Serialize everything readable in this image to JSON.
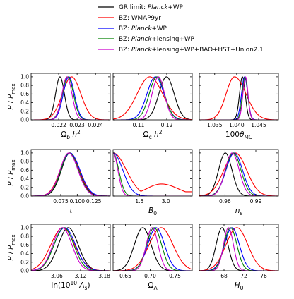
{
  "legend": [
    {
      "pre": "GR limit: ",
      "em": "Planck",
      "post": "+WP",
      "color": "#000000"
    },
    {
      "pre": "BZ: WMAP9yr",
      "em": "",
      "post": "",
      "color": "#ff0000"
    },
    {
      "pre": "BZ: ",
      "em": "Planck",
      "post": "+WP",
      "color": "#0000ff"
    },
    {
      "pre": "BZ: ",
      "em": "Planck",
      "post": "+lensing+WP",
      "color": "#008000"
    },
    {
      "pre": "BZ: ",
      "em": "Planck",
      "post": "+lensing+WP+BAO+HST+Union2.1",
      "color": "#cc00cc"
    }
  ],
  "ylabel": {
    "main": "P",
    "sep": " / ",
    "sub_main": "P",
    "sub": "max"
  },
  "chart_data": [
    {
      "type": "line",
      "xlabel": "Ω_b h^2",
      "xlim": [
        0.0205,
        0.0248
      ],
      "ylim": [
        0,
        1.08
      ],
      "xticks": [
        0.022,
        0.023,
        0.024
      ],
      "xtick_labels": [
        "0.022",
        "0.023",
        "0.024"
      ],
      "yticks": [
        0,
        0.2,
        0.4,
        0.6,
        0.8,
        1.0
      ],
      "ytick_labels": [
        "0.0",
        "0.2",
        "0.4",
        "0.6",
        "0.8",
        "1.0"
      ],
      "series": [
        {
          "color": "#000000",
          "peaks": [
            [
              0.02207,
              0.00024,
              0.00024
            ]
          ]
        },
        {
          "color": "#ff0000",
          "peaks": [
            [
              0.0227,
              0.0005,
              0.0005
            ]
          ]
        },
        {
          "color": "#0000ff",
          "peaks": [
            [
              0.02255,
              0.0003,
              0.0003
            ]
          ]
        },
        {
          "color": "#008000",
          "peaks": [
            [
              0.0225,
              0.0003,
              0.0003
            ]
          ]
        },
        {
          "color": "#cc00cc",
          "peaks": [
            [
              0.02245,
              0.00027,
              0.00027
            ]
          ]
        }
      ]
    },
    {
      "type": "line",
      "xlabel": "Ω_c h^2",
      "xlim": [
        0.101,
        0.129
      ],
      "xticks": [
        0.11,
        0.12
      ],
      "xtick_labels": [
        "0.11",
        "0.12"
      ],
      "series": [
        {
          "color": "#000000",
          "peaks": [
            [
              0.1199,
              0.0027,
              0.0027
            ]
          ]
        },
        {
          "color": "#ff0000",
          "peaks": [
            [
              0.114,
              0.0045,
              0.0045
            ]
          ]
        },
        {
          "color": "#0000ff",
          "peaks": [
            [
              0.116,
              0.003,
              0.003
            ]
          ]
        },
        {
          "color": "#008000",
          "peaks": [
            [
              0.1165,
              0.0027,
              0.0027
            ]
          ]
        },
        {
          "color": "#cc00cc",
          "peaks": [
            [
              0.117,
              0.0022,
              0.0022
            ]
          ]
        }
      ]
    },
    {
      "type": "line",
      "xlabel": "100θ_MC",
      "xlim": [
        1.0315,
        1.0495
      ],
      "xticks": [
        1.035,
        1.04,
        1.045
      ],
      "xtick_labels": [
        "1.035",
        "1.040",
        "1.045"
      ],
      "series": [
        {
          "color": "#000000",
          "peaks": [
            [
              1.0413,
              0.00065,
              0.00065
            ]
          ]
        },
        {
          "color": "#ff0000",
          "peaks": [
            [
              1.0395,
              0.0019,
              0.0026
            ]
          ]
        },
        {
          "color": "#0000ff",
          "peaks": [
            [
              1.0418,
              0.0007,
              0.0007
            ]
          ]
        },
        {
          "color": "#008000",
          "peaks": [
            [
              1.0419,
              0.00062,
              0.00062
            ]
          ]
        },
        {
          "color": "#cc00cc",
          "peaks": [
            [
              1.042,
              0.00058,
              0.00058
            ]
          ]
        }
      ]
    },
    {
      "type": "line",
      "xlabel": "τ",
      "xlim": [
        0.03,
        0.15
      ],
      "xticks": [
        0.075,
        0.1,
        0.125
      ],
      "xtick_labels": [
        "0.075",
        "0.100",
        "0.125"
      ],
      "series": [
        {
          "color": "#000000",
          "peaks": [
            [
              0.089,
              0.013,
              0.014
            ]
          ]
        },
        {
          "color": "#ff0000",
          "peaks": [
            [
              0.088,
              0.014,
              0.015
            ]
          ]
        },
        {
          "color": "#0000ff",
          "peaks": [
            [
              0.089,
              0.014,
              0.015
            ]
          ]
        },
        {
          "color": "#008000",
          "peaks": [
            [
              0.088,
              0.013,
              0.014
            ]
          ]
        },
        {
          "color": "#cc00cc",
          "peaks": [
            [
              0.087,
              0.013,
              0.014
            ]
          ]
        }
      ]
    },
    {
      "type": "line",
      "xlabel": "B_0",
      "xlim": [
        0.0,
        4.5
      ],
      "xticks": [
        1.5,
        3.0
      ],
      "xtick_labels": [
        "1.5",
        "3.0"
      ],
      "series": [
        {
          "color": "#ff0000",
          "floor": 0.1,
          "peaks": [
            [
              0.0,
              0.75,
              0.75
            ],
            [
              2.75,
              0.85,
              0.95,
              0.28
            ]
          ]
        },
        {
          "color": "#0000ff",
          "peaks": [
            [
              0.0,
              0.55,
              0.55
            ]
          ]
        },
        {
          "color": "#008000",
          "peaks": [
            [
              0.0,
              0.32,
              0.32
            ]
          ]
        },
        {
          "color": "#cc00cc",
          "peaks": [
            [
              0.0,
              0.27,
              0.27
            ]
          ]
        }
      ]
    },
    {
      "type": "line",
      "xlabel": "n_s",
      "xlim": [
        0.935,
        1.012
      ],
      "xticks": [
        0.96,
        0.99
      ],
      "xtick_labels": [
        "0.96",
        "0.99"
      ],
      "series": [
        {
          "color": "#000000",
          "peaks": [
            [
              0.9603,
              0.0065,
              0.0065
            ]
          ]
        },
        {
          "color": "#ff0000",
          "peaks": [
            [
              0.97,
              0.011,
              0.011
            ]
          ]
        },
        {
          "color": "#0000ff",
          "peaks": [
            [
              0.969,
              0.008,
              0.008
            ]
          ]
        },
        {
          "color": "#008000",
          "peaks": [
            [
              0.968,
              0.0075,
              0.0075
            ]
          ]
        },
        {
          "color": "#cc00cc",
          "peaks": [
            [
              0.967,
              0.0068,
              0.0068
            ]
          ]
        }
      ]
    },
    {
      "type": "line",
      "xlabel": "ln(10^10 A_s)",
      "xlim": [
        2.995,
        3.195
      ],
      "xticks": [
        3.06,
        3.12,
        3.18
      ],
      "xtick_labels": [
        "3.06",
        "3.12",
        "3.18"
      ],
      "series": [
        {
          "color": "#000000",
          "peaks": [
            [
              3.089,
              0.025,
              0.025
            ]
          ]
        },
        {
          "color": "#ff0000",
          "peaks": [
            [
              3.075,
              0.03,
              0.03
            ]
          ]
        },
        {
          "color": "#0000ff",
          "peaks": [
            [
              3.08,
              0.027,
              0.027
            ]
          ]
        },
        {
          "color": "#008000",
          "peaks": [
            [
              3.078,
              0.025,
              0.025
            ]
          ]
        },
        {
          "color": "#cc00cc",
          "peaks": [
            [
              3.074,
              0.024,
              0.024
            ]
          ]
        }
      ]
    },
    {
      "type": "line",
      "xlabel": "Ω_Λ",
      "xlim": [
        0.625,
        0.785
      ],
      "xticks": [
        0.65,
        0.7,
        0.75
      ],
      "xtick_labels": [
        "0.65",
        "0.70",
        "0.75"
      ],
      "series": [
        {
          "color": "#000000",
          "peaks": [
            [
              0.685,
              0.017,
              0.017
            ]
          ]
        },
        {
          "color": "#ff0000",
          "peaks": [
            [
              0.722,
              0.024,
              0.024
            ]
          ]
        },
        {
          "color": "#0000ff",
          "peaks": [
            [
              0.712,
              0.017,
              0.017
            ]
          ]
        },
        {
          "color": "#008000",
          "peaks": [
            [
              0.708,
              0.015,
              0.015
            ]
          ]
        },
        {
          "color": "#cc00cc",
          "peaks": [
            [
              0.704,
              0.012,
              0.012
            ]
          ]
        }
      ]
    },
    {
      "type": "line",
      "xlabel": "H_0",
      "xlim": [
        63,
        79
      ],
      "xticks": [
        68,
        72,
        76
      ],
      "xtick_labels": [
        "68",
        "72",
        "76"
      ],
      "series": [
        {
          "color": "#000000",
          "peaks": [
            [
              67.6,
              1.2,
              1.2
            ]
          ]
        },
        {
          "color": "#ff0000",
          "peaks": [
            [
              70.6,
              2.2,
              2.2
            ]
          ]
        },
        {
          "color": "#0000ff",
          "peaks": [
            [
              69.6,
              1.5,
              1.5
            ]
          ]
        },
        {
          "color": "#008000",
          "peaks": [
            [
              69.3,
              1.3,
              1.3
            ]
          ]
        },
        {
          "color": "#cc00cc",
          "peaks": [
            [
              68.9,
              1.0,
              1.0
            ]
          ]
        }
      ]
    }
  ]
}
